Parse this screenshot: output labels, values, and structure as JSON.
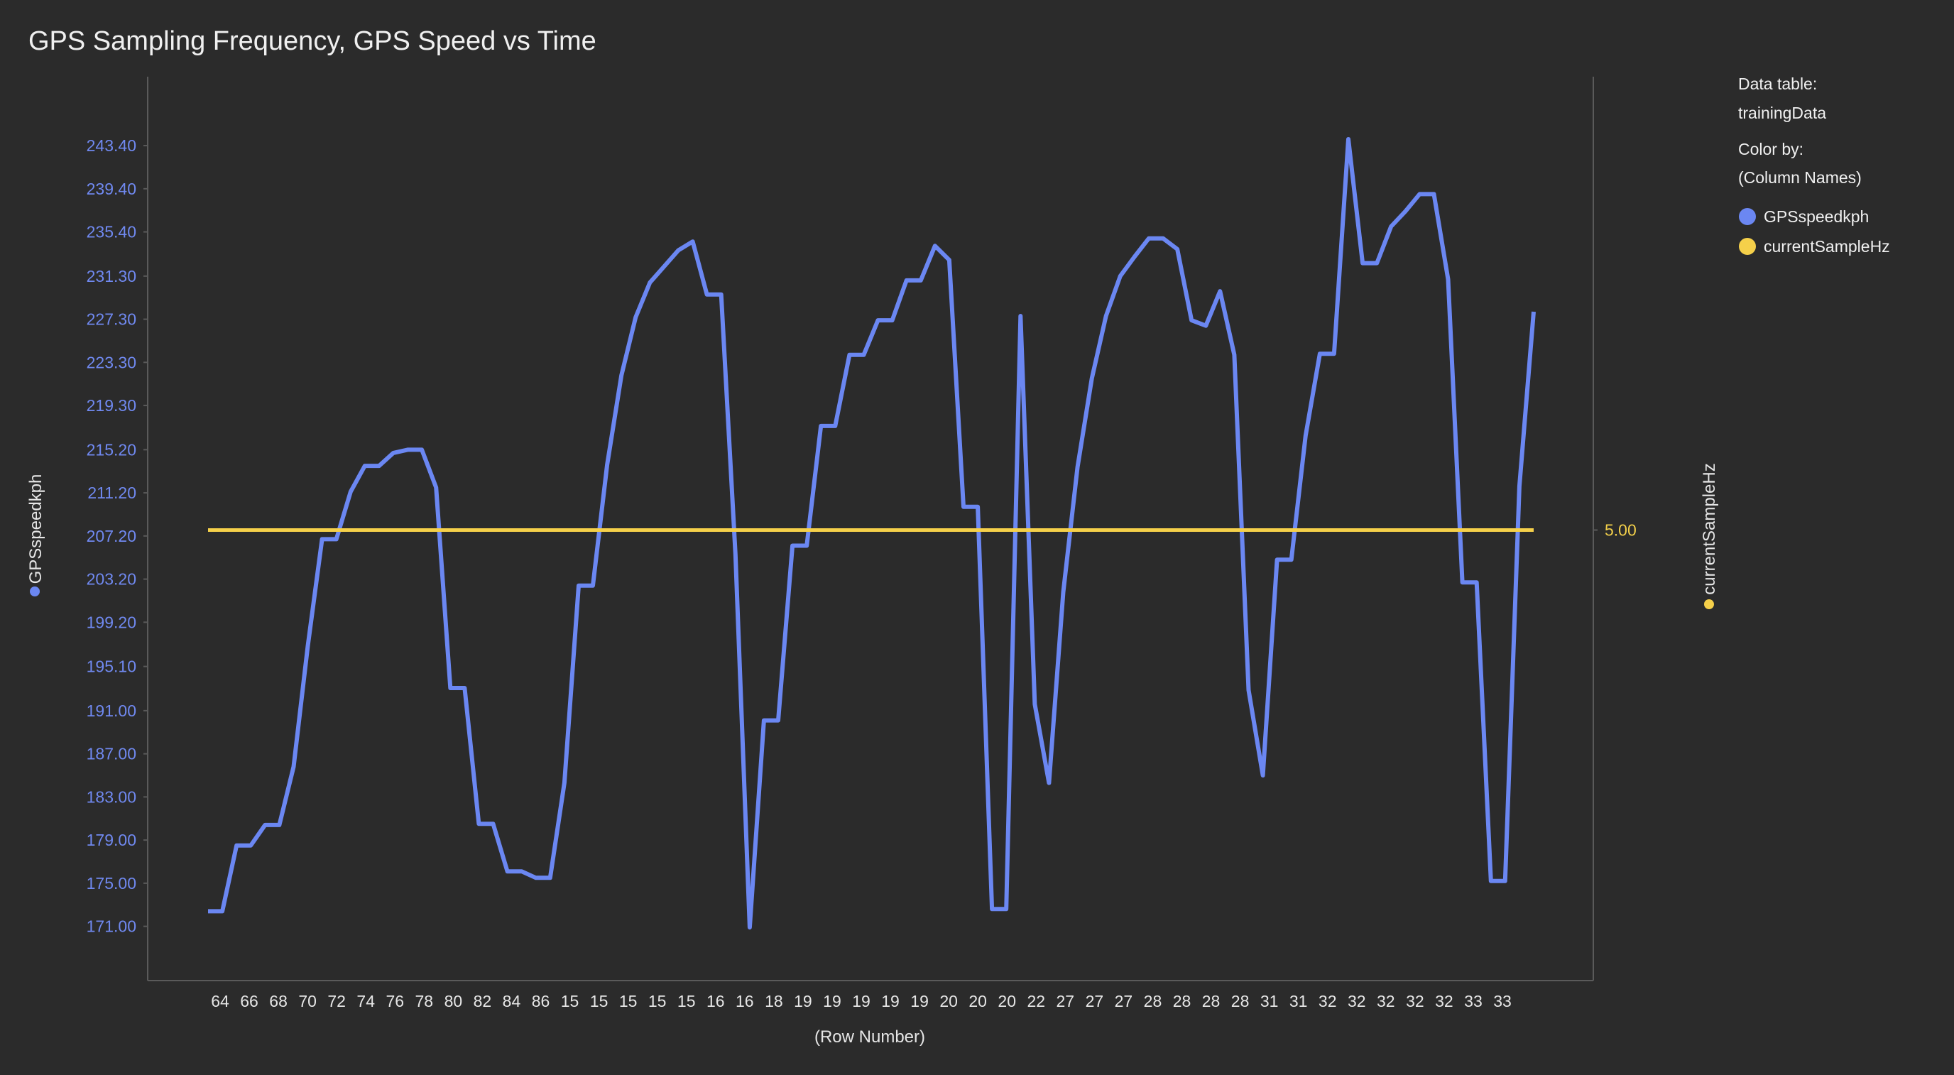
{
  "chart_data": {
    "type": "line",
    "title": "GPS Sampling Frequency, GPS Speed vs Time",
    "xlabel": "(Row Number)",
    "ylabel_left": "GPSspeedkph",
    "ylabel_right": "currentSampleHz",
    "ylim_left": [
      169.0,
      246.5
    ],
    "ylim_right": [
      0.0,
      10.0
    ],
    "y_ticks_left": [
      "171.00",
      "175.00",
      "179.00",
      "183.00",
      "187.00",
      "191.00",
      "195.10",
      "199.20",
      "203.20",
      "207.20",
      "211.20",
      "215.20",
      "219.30",
      "223.30",
      "227.30",
      "231.30",
      "235.40",
      "239.40",
      "243.40"
    ],
    "y_ticks_right": [
      "5.00"
    ],
    "x_tick_labels": [
      "64",
      "66",
      "68",
      "70",
      "72",
      "74",
      "76",
      "78",
      "80",
      "82",
      "84",
      "86",
      "15",
      "15",
      "15",
      "15",
      "15",
      "16",
      "16",
      "18",
      "19",
      "19",
      "19",
      "19",
      "19",
      "20",
      "20",
      "20",
      "22",
      "27",
      "27",
      "27",
      "28",
      "28",
      "28",
      "28",
      "31",
      "31",
      "32",
      "32",
      "32",
      "32",
      "32",
      "33",
      "33"
    ],
    "grid": false,
    "series": [
      {
        "name": "GPSspeedkph",
        "axis": "left",
        "color": "#6b87f2",
        "values": [
          172.4,
          172.4,
          178.5,
          178.5,
          180.4,
          180.4,
          185.8,
          197.0,
          206.9,
          206.9,
          211.3,
          213.7,
          213.7,
          214.9,
          215.2,
          215.2,
          211.7,
          193.1,
          193.1,
          180.5,
          180.5,
          176.1,
          176.1,
          175.5,
          175.5,
          184.3,
          202.6,
          202.6,
          213.8,
          222.1,
          227.5,
          230.7,
          232.2,
          233.7,
          234.5,
          229.6,
          229.6,
          205.5,
          170.9,
          190.1,
          190.1,
          206.3,
          206.3,
          217.4,
          217.4,
          224.0,
          224.0,
          227.2,
          227.2,
          230.9,
          230.9,
          234.1,
          232.8,
          209.9,
          209.9,
          172.6,
          172.6,
          227.6,
          191.6,
          184.3,
          202.0,
          213.6,
          221.8,
          227.6,
          231.3,
          233.1,
          234.8,
          234.8,
          233.8,
          227.2,
          226.7,
          229.9,
          224.0,
          192.9,
          185.0,
          205.0,
          205.0,
          216.5,
          224.1,
          224.1,
          244.0,
          232.5,
          232.5,
          235.9,
          237.3,
          238.9,
          238.9,
          231.0,
          202.9,
          202.9,
          175.2,
          175.2,
          211.8,
          228.0
        ]
      },
      {
        "name": "currentSampleHz",
        "axis": "right",
        "color": "#f5d04a",
        "values": [
          5,
          5,
          5,
          5,
          5,
          5,
          5,
          5,
          5,
          5,
          5,
          5,
          5,
          5,
          5,
          5,
          5,
          5,
          5,
          5,
          5,
          5,
          5,
          5,
          5,
          5,
          5,
          5,
          5,
          5,
          5,
          5,
          5,
          5,
          5,
          5,
          5,
          5,
          5,
          5,
          5,
          5,
          5,
          5,
          5,
          5,
          5,
          5,
          5,
          5,
          5,
          5,
          5,
          5,
          5,
          5,
          5,
          5,
          5,
          5,
          5,
          5,
          5,
          5,
          5,
          5,
          5,
          5,
          5,
          5,
          5,
          5,
          5,
          5,
          5,
          5,
          5,
          5,
          5,
          5,
          5,
          5,
          5,
          5,
          5,
          5,
          5,
          5,
          5,
          5,
          5,
          5,
          5,
          5
        ]
      }
    ]
  },
  "legend": {
    "data_table_label": "Data table:",
    "data_table_value": "trainingData",
    "color_by_label": "Color by:",
    "color_by_value": "(Column Names)",
    "items": [
      {
        "label": "GPSspeedkph",
        "color": "#6b87f2"
      },
      {
        "label": "currentSampleHz",
        "color": "#f5d04a"
      }
    ]
  }
}
